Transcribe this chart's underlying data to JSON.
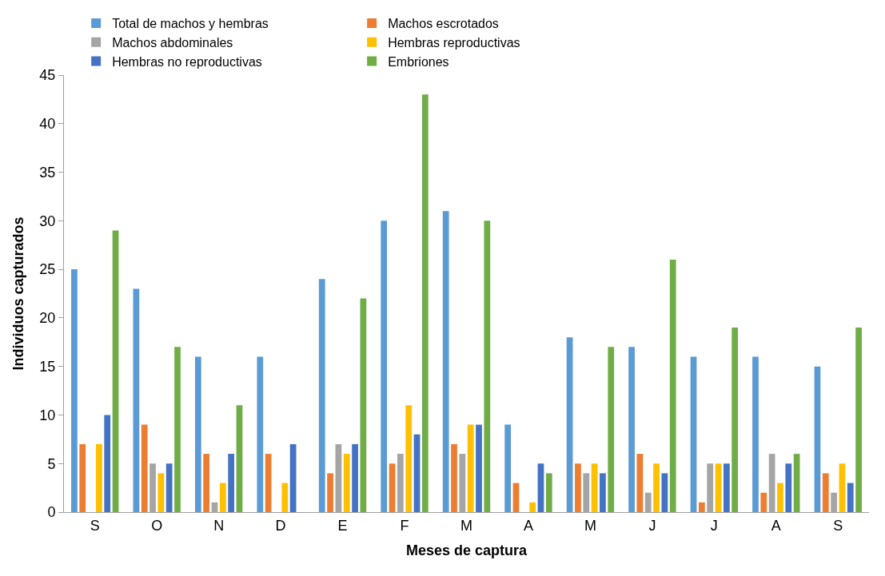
{
  "chart_data": {
    "type": "bar",
    "xlabel": "Meses de captura",
    "ylabel": "Individuos capturados",
    "categories": [
      "S",
      "O",
      "N",
      "D",
      "E",
      "F",
      "M",
      "A",
      "M",
      "J",
      "J",
      "A",
      "S"
    ],
    "series": [
      {
        "name": "Total de machos y hembras",
        "color": "#5b9bd5",
        "values": [
          25,
          23,
          16,
          16,
          24,
          30,
          31,
          9,
          18,
          17,
          16,
          16,
          15
        ]
      },
      {
        "name": "Machos escrotados",
        "color": "#ed7d31",
        "values": [
          7,
          9,
          6,
          6,
          4,
          5,
          7,
          3,
          5,
          6,
          1,
          2,
          4
        ]
      },
      {
        "name": "Machos abdominales",
        "color": "#a5a5a5",
        "values": [
          0,
          5,
          1,
          0,
          7,
          6,
          6,
          0,
          4,
          2,
          5,
          6,
          2
        ]
      },
      {
        "name": "Hembras reproductivas",
        "color": "#ffc000",
        "values": [
          7,
          4,
          3,
          3,
          6,
          11,
          9,
          1,
          5,
          5,
          5,
          3,
          5
        ]
      },
      {
        "name": "Hembras no reproductivas",
        "color": "#4472c4",
        "values": [
          10,
          5,
          6,
          7,
          7,
          8,
          9,
          5,
          4,
          4,
          5,
          5,
          3
        ]
      },
      {
        "name": "Embriones",
        "color": "#70ad47",
        "values": [
          29,
          17,
          11,
          0,
          22,
          43,
          30,
          4,
          17,
          26,
          19,
          6,
          19
        ]
      }
    ],
    "ylim": [
      0,
      45
    ],
    "yticks": [
      0,
      5,
      10,
      15,
      20,
      25,
      30,
      35,
      40,
      45
    ],
    "legend": "top"
  }
}
